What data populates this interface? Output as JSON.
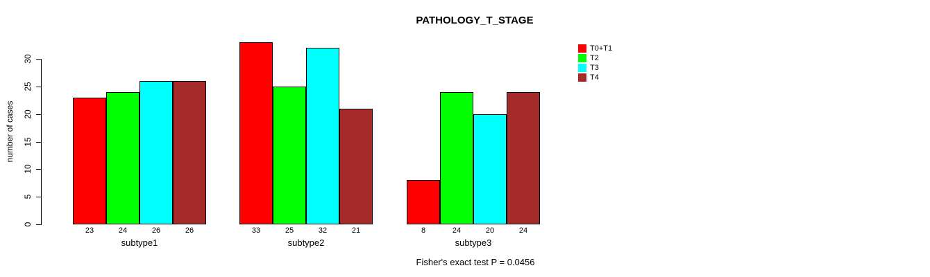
{
  "chart_data": {
    "type": "bar",
    "title": "PATHOLOGY_T_STAGE",
    "ylabel": "number of cases",
    "xlabel": "",
    "categories": [
      "subtype1",
      "subtype2",
      "subtype3"
    ],
    "series": [
      {
        "name": "T0+T1",
        "color": "#ff0000",
        "values": [
          23,
          33,
          8
        ]
      },
      {
        "name": "T2",
        "color": "#00ff00",
        "values": [
          24,
          25,
          24
        ]
      },
      {
        "name": "T3",
        "color": "#00ffff",
        "values": [
          26,
          32,
          20
        ]
      },
      {
        "name": "T4",
        "color": "#a52a2a",
        "values": [
          26,
          21,
          24
        ]
      }
    ],
    "y_ticks": [
      0,
      5,
      10,
      15,
      20,
      25,
      30
    ],
    "ylim": [
      0,
      33
    ],
    "grid": false,
    "bar_value_labels_shown": true,
    "legend_position": "right",
    "legend_entries": [
      "T0+T1",
      "T2",
      "T3",
      "T4"
    ],
    "annotation": "Fisher's exact test P = 0.0456",
    "bar_border_color": "#000000",
    "text_color": "#000000",
    "background_color": "#ffffff"
  }
}
